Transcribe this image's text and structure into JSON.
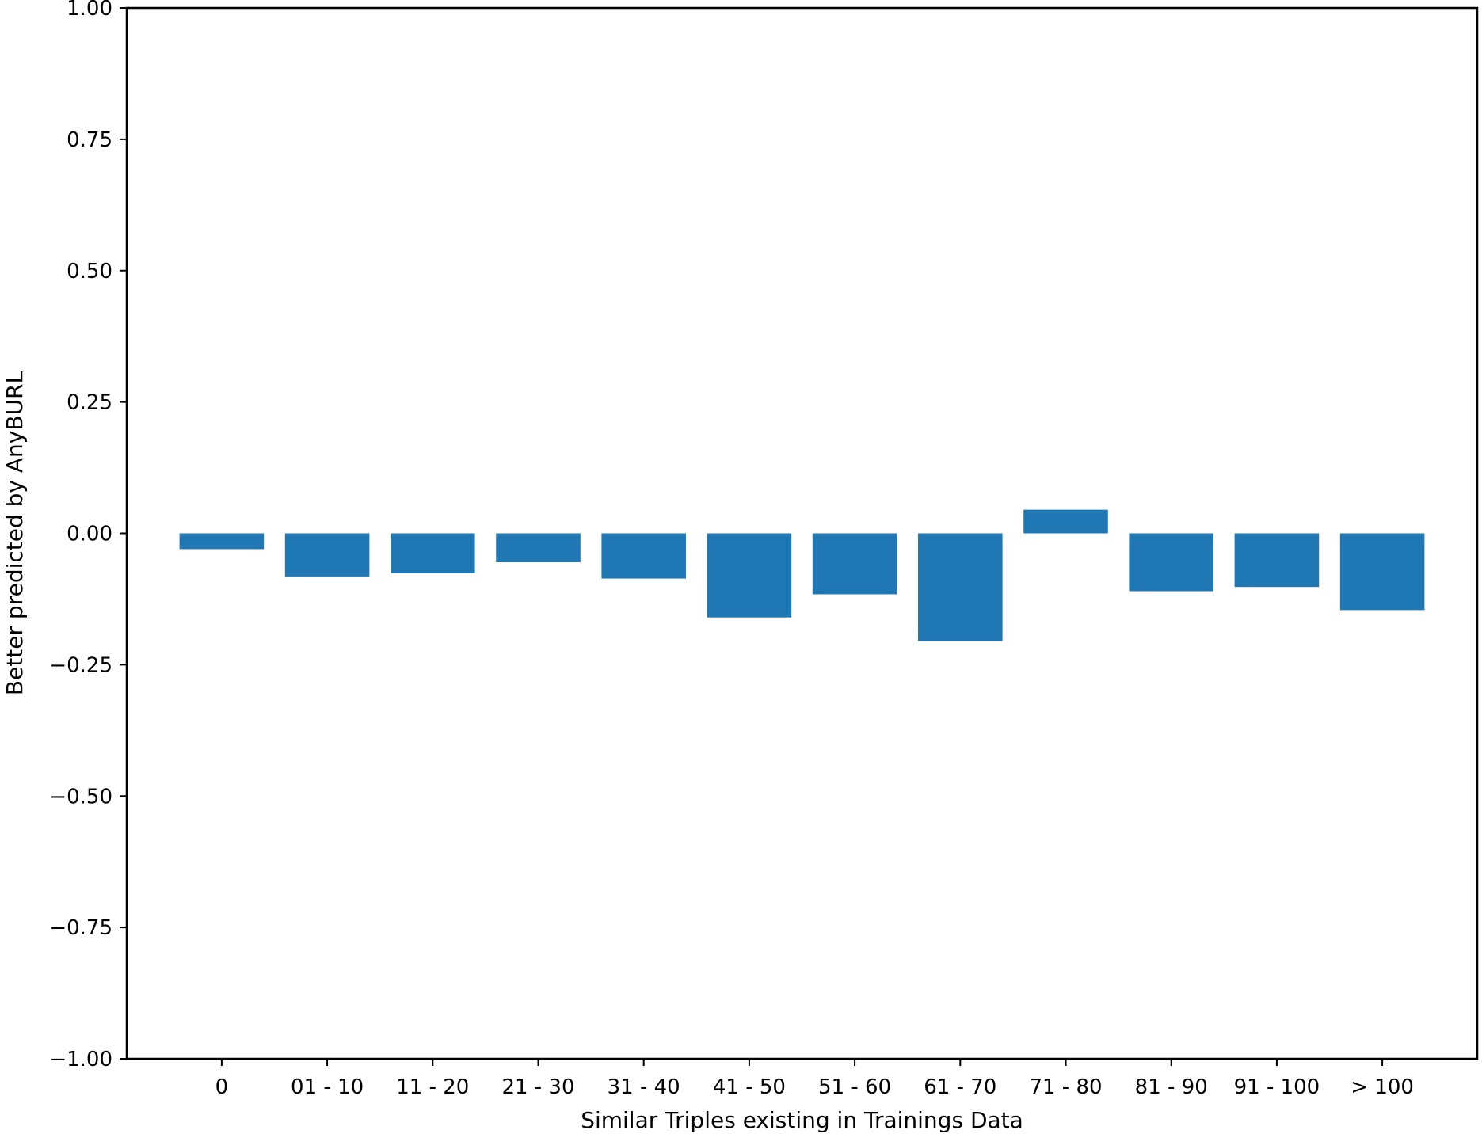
{
  "chart_data": {
    "type": "bar",
    "title": "",
    "xlabel": "Similar Triples existing in Trainings Data",
    "ylabel": "Better predicted by AnyBURL",
    "ylim": [
      -1.0,
      1.0
    ],
    "yticks": [
      -1.0,
      -0.75,
      -0.5,
      -0.25,
      0.0,
      0.25,
      0.5,
      0.75,
      1.0
    ],
    "ytick_labels": [
      "−1.00",
      "−0.75",
      "−0.50",
      "−0.25",
      "0.00",
      "0.25",
      "0.50",
      "0.75",
      "1.00"
    ],
    "categories": [
      "0",
      "01 - 10",
      "11 - 20",
      "21 - 30",
      "31 - 40",
      "41 - 50",
      "51 - 60",
      "61 - 70",
      "71 - 80",
      "81 - 90",
      "91 - 100",
      "> 100"
    ],
    "values": [
      -0.03,
      -0.082,
      -0.076,
      -0.055,
      -0.086,
      -0.16,
      -0.116,
      -0.205,
      0.045,
      -0.11,
      -0.102,
      -0.146
    ],
    "bar_color": "#1f77b4",
    "grid": false
  }
}
